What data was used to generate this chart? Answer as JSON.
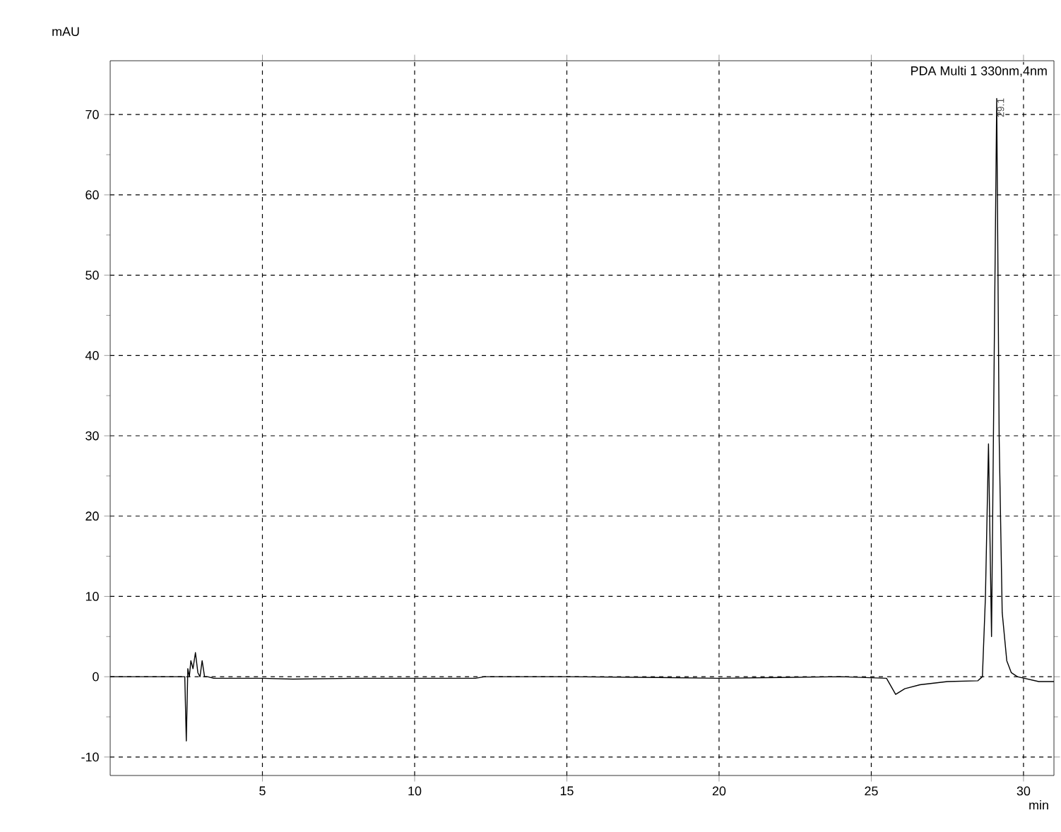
{
  "chart_data": {
    "type": "line",
    "xlabel": "min",
    "ylabel": "mAU",
    "annotations": [
      "PDA Multi 1 330nm,4nm",
      {
        "text": "29.1",
        "x": 29.1,
        "y": 72
      }
    ],
    "series": [
      {
        "color": "#000000",
        "x": [
          0,
          2.3,
          2.45,
          2.5,
          2.55,
          2.6,
          2.65,
          2.72,
          2.8,
          2.88,
          2.95,
          3.02,
          3.1,
          3.2,
          3.4,
          5,
          6,
          8,
          10,
          12,
          12.3,
          15,
          18,
          20,
          22,
          24,
          25.5,
          25.8,
          26.1,
          26.6,
          27.5,
          28.5,
          28.65,
          28.75,
          28.85,
          28.95,
          29.05,
          29.12,
          29.2,
          29.3,
          29.45,
          29.6,
          29.8,
          30.5,
          31
        ],
        "values": [
          0,
          0,
          0,
          -8,
          1,
          0,
          2,
          1,
          3,
          0.5,
          0,
          2,
          0,
          0,
          -0.2,
          -0.2,
          -0.3,
          -0.2,
          -0.2,
          -0.2,
          0,
          0,
          -0.1,
          -0.2,
          -0.1,
          0,
          -0.2,
          -2.2,
          -1.5,
          -1.0,
          -0.6,
          -0.5,
          0,
          10,
          29,
          5,
          45,
          72,
          30,
          8,
          2,
          0.5,
          0,
          -0.6,
          -0.6
        ]
      }
    ],
    "xlim": [
      0,
      31
    ],
    "ylim": [
      -12.3,
      76.7
    ],
    "xticks": [
      5,
      10,
      15,
      20,
      25,
      30
    ],
    "yticks": [
      -10,
      0,
      10,
      20,
      30,
      40,
      50,
      60,
      70
    ],
    "grid": true,
    "line_style": "solid",
    "marker": "none"
  }
}
